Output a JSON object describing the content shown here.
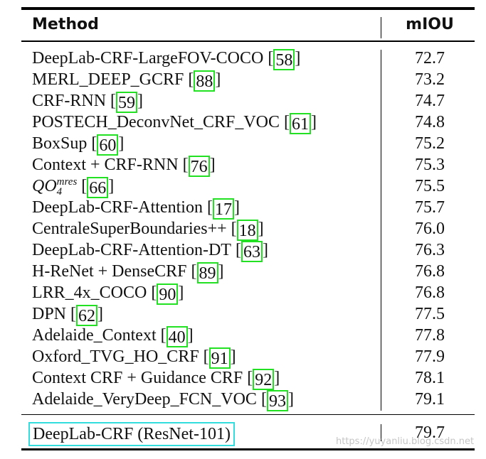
{
  "header": {
    "method": "Method",
    "miou": "mIOU"
  },
  "rows": [
    {
      "method": "DeepLab-CRF-LargeFOV-COCO",
      "ref": "58",
      "miou": "72.7"
    },
    {
      "method": "MERL_DEEP_GCRF",
      "ref": "88",
      "miou": "73.2"
    },
    {
      "method": "CRF-RNN",
      "ref": "59",
      "miou": "74.7"
    },
    {
      "method": "POSTECH_DeconvNet_CRF_VOC",
      "ref": "61",
      "miou": "74.8"
    },
    {
      "method": "BoxSup",
      "ref": "60",
      "miou": "75.2"
    },
    {
      "method": "Context + CRF-RNN",
      "ref": "76",
      "miou": "75.3"
    },
    {
      "method": "QO",
      "sub": "4",
      "sup": "mres",
      "ref": "66",
      "miou": "75.5"
    },
    {
      "method": "DeepLab-CRF-Attention",
      "ref": "17",
      "miou": "75.7"
    },
    {
      "method": "CentraleSuperBoundaries++",
      "ref": "18",
      "miou": "76.0"
    },
    {
      "method": "DeepLab-CRF-Attention-DT",
      "ref": "63",
      "miou": "76.3"
    },
    {
      "method": "H-ReNet + DenseCRF",
      "ref": "89",
      "miou": "76.8"
    },
    {
      "method": "LRR_4x_COCO",
      "ref": "90",
      "miou": "76.8"
    },
    {
      "method": "DPN",
      "ref": "62",
      "miou": "77.5"
    },
    {
      "method": "Adelaide_Context",
      "ref": "40",
      "miou": "77.8"
    },
    {
      "method": "Oxford_TVG_HO_CRF",
      "ref": "91",
      "miou": "77.9"
    },
    {
      "method": "Context CRF + Guidance CRF",
      "ref": "92",
      "miou": "78.1"
    },
    {
      "method": "Adelaide_VeryDeep_FCN_VOC",
      "ref": "93",
      "miou": "79.1"
    }
  ],
  "ours": {
    "method": "DeepLab-CRF (ResNet-101)",
    "miou": "79.7"
  },
  "watermark": "https://yuyanliu.blog.csdn.net"
}
